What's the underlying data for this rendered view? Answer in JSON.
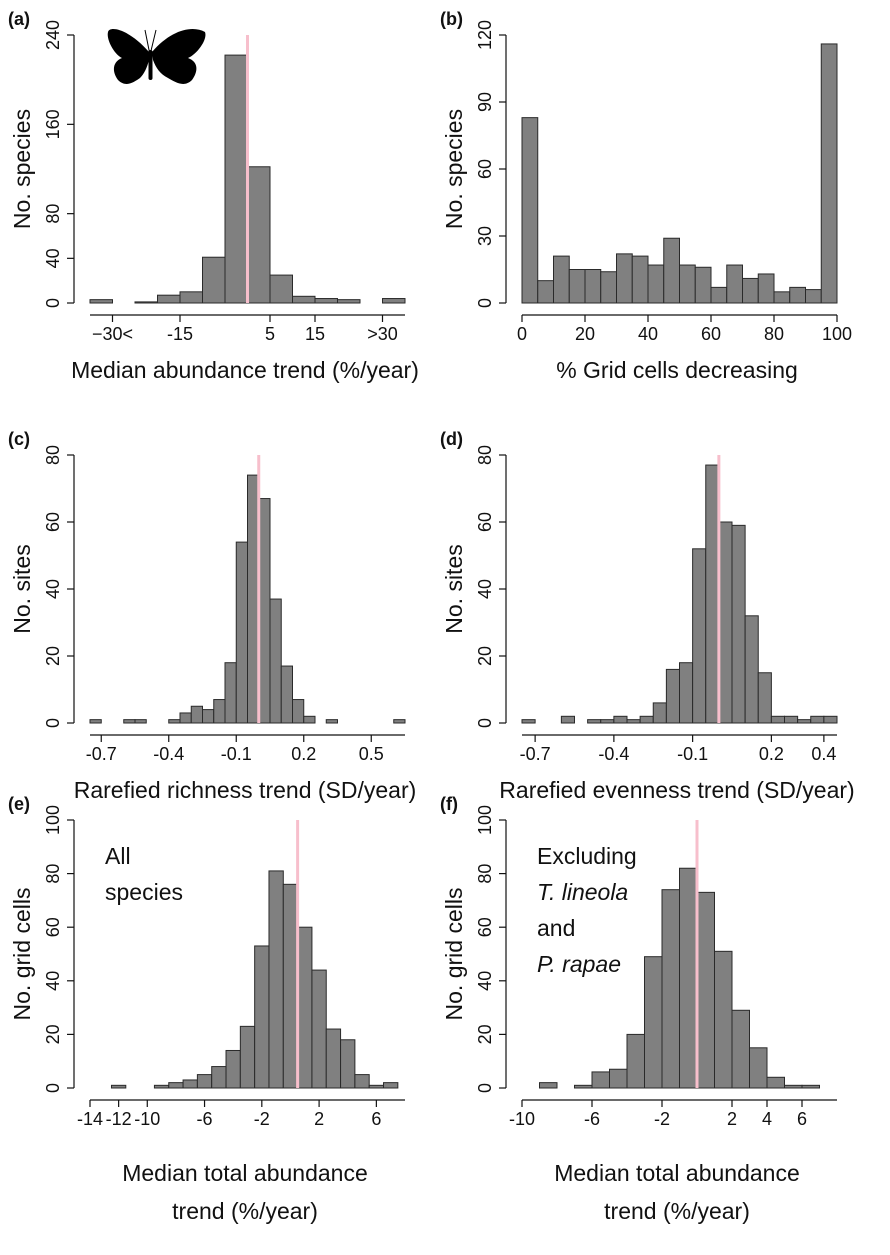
{
  "chart_data": [
    {
      "type": "histogram",
      "panel": "(a)",
      "ylabel": "No. species",
      "xlabel": "Median abundance trend (%/year)",
      "bins": [
        -35,
        -30,
        -25,
        -20,
        -15,
        -10,
        -5,
        0,
        5,
        10,
        15,
        20,
        25,
        30,
        35
      ],
      "values": [
        3,
        0,
        1,
        7,
        10,
        41,
        222,
        122,
        25,
        6,
        4,
        3,
        0,
        4
      ],
      "xlim": [
        -35,
        35
      ],
      "xticks": [
        {
          "value": -30,
          "label": "−30<"
        },
        -15,
        5,
        15,
        {
          "value": 30,
          "label": ">30"
        }
      ],
      "ylim": [
        0,
        240
      ],
      "yticks": [
        0,
        40,
        80,
        160,
        240
      ],
      "vline": 0,
      "color": "#808080",
      "vline_color": "#f7bfcc"
    },
    {
      "type": "histogram",
      "panel": "(b)",
      "ylabel": "No. species",
      "xlabel": "% Grid cells decreasing",
      "bins": [
        0,
        5,
        10,
        15,
        20,
        25,
        30,
        35,
        40,
        45,
        50,
        55,
        60,
        65,
        70,
        75,
        80,
        85,
        90,
        95,
        100
      ],
      "values": [
        83,
        10,
        21,
        15,
        15,
        14,
        22,
        21,
        17,
        29,
        17,
        16,
        7,
        17,
        11,
        13,
        5,
        7,
        6,
        116
      ],
      "xlim": [
        0,
        100
      ],
      "xticks": [
        0,
        20,
        40,
        60,
        80,
        100
      ],
      "ylim": [
        0,
        120
      ],
      "yticks": [
        0,
        30,
        60,
        90,
        120
      ],
      "color": "#808080"
    },
    {
      "type": "histogram",
      "panel": "(c)",
      "ylabel": "No. sites",
      "xlabel": "Rarefied richness trend (SD/year)",
      "bins": [
        -0.75,
        -0.7,
        -0.65,
        -0.6,
        -0.55,
        -0.5,
        -0.45,
        -0.4,
        -0.35,
        -0.3,
        -0.25,
        -0.2,
        -0.15,
        -0.1,
        -0.05,
        0,
        0.05,
        0.1,
        0.15,
        0.2,
        0.25,
        0.3,
        0.35,
        0.4,
        0.45,
        0.5,
        0.55,
        0.6,
        0.65
      ],
      "values": [
        1,
        0,
        0,
        1,
        1,
        0,
        0,
        1,
        3,
        5,
        4,
        7,
        18,
        54,
        74,
        67,
        37,
        17,
        7,
        2,
        0,
        1,
        0,
        0,
        0,
        0,
        0,
        1
      ],
      "xlim": [
        -0.75,
        0.65
      ],
      "xticks": [
        -0.7,
        -0.4,
        -0.1,
        0.2,
        0.5
      ],
      "ylim": [
        0,
        80
      ],
      "yticks": [
        0,
        20,
        40,
        60,
        80
      ],
      "vline": 0,
      "color": "#808080",
      "vline_color": "#f7bfcc"
    },
    {
      "type": "histogram",
      "panel": "(d)",
      "ylabel": "No. sites",
      "xlabel": "Rarefied evenness trend (SD/year)",
      "bins": [
        -0.75,
        -0.7,
        -0.65,
        -0.6,
        -0.55,
        -0.5,
        -0.45,
        -0.4,
        -0.35,
        -0.3,
        -0.25,
        -0.2,
        -0.15,
        -0.1,
        -0.05,
        0,
        0.05,
        0.1,
        0.15,
        0.2,
        0.25,
        0.3,
        0.35,
        0.4,
        0.45
      ],
      "values": [
        1,
        0,
        0,
        2,
        0,
        1,
        1,
        2,
        1,
        2,
        6,
        16,
        18,
        52,
        77,
        60,
        59,
        32,
        15,
        2,
        2,
        1,
        2,
        2
      ],
      "xlim": [
        -0.75,
        0.45
      ],
      "xticks": [
        -0.7,
        -0.4,
        -0.1,
        0.2,
        0.4
      ],
      "ylim": [
        0,
        80
      ],
      "yticks": [
        0,
        20,
        40,
        60,
        80
      ],
      "vline": 0,
      "color": "#808080",
      "vline_color": "#f7bfcc"
    },
    {
      "type": "histogram",
      "panel": "(e)",
      "ylabel": "No. grid cells",
      "xlabel": [
        "Median total abundance",
        "trend (%/year)"
      ],
      "annotation": [
        {
          "text": "All",
          "italic": false
        },
        {
          "text": "species",
          "italic": false
        }
      ],
      "bins": [
        -12.5,
        -11.5,
        -10.5,
        -9.5,
        -8.5,
        -7.5,
        -6.5,
        -5.5,
        -4.5,
        -3.5,
        -2.5,
        -1.5,
        -0.5,
        0.5,
        1.5,
        2.5,
        3.5,
        4.5,
        5.5,
        6.5,
        7.5
      ],
      "values": [
        1,
        0,
        0,
        1,
        2,
        3,
        5,
        8,
        14,
        23,
        53,
        81,
        76,
        60,
        44,
        22,
        18,
        5,
        1,
        2
      ],
      "xlim": [
        -14,
        8
      ],
      "xticks": [
        -14,
        -12,
        -10,
        -6,
        -2,
        2,
        6
      ],
      "ylim": [
        0,
        100
      ],
      "yticks": [
        0,
        20,
        40,
        60,
        80,
        100
      ],
      "vline": 0.5,
      "color": "#808080",
      "vline_color": "#f7bfcc"
    },
    {
      "type": "histogram",
      "panel": "(f)",
      "ylabel": "No. grid cells",
      "xlabel": [
        "Median total abundance",
        "trend (%/year)"
      ],
      "annotation": [
        {
          "text": "Excluding",
          "italic": false
        },
        {
          "text": "T. lineola",
          "italic": true
        },
        {
          "text": "and",
          "italic": false
        },
        {
          "text": "P. rapae",
          "italic": true
        }
      ],
      "bins": [
        -9,
        -8,
        -7,
        -6,
        -5,
        -4,
        -3,
        -2,
        -1,
        0,
        1,
        2,
        3,
        4,
        5,
        6,
        7
      ],
      "values": [
        2,
        0,
        1,
        6,
        7,
        20,
        49,
        74,
        82,
        73,
        51,
        29,
        15,
        4,
        1,
        1
      ],
      "xlim": [
        -10,
        8
      ],
      "xticks": [
        -10,
        -6,
        -2,
        2,
        4,
        6
      ],
      "ylim": [
        0,
        100
      ],
      "yticks": [
        0,
        20,
        40,
        60,
        80,
        100
      ],
      "vline": 0,
      "color": "#808080",
      "vline_color": "#f7bfcc"
    }
  ]
}
